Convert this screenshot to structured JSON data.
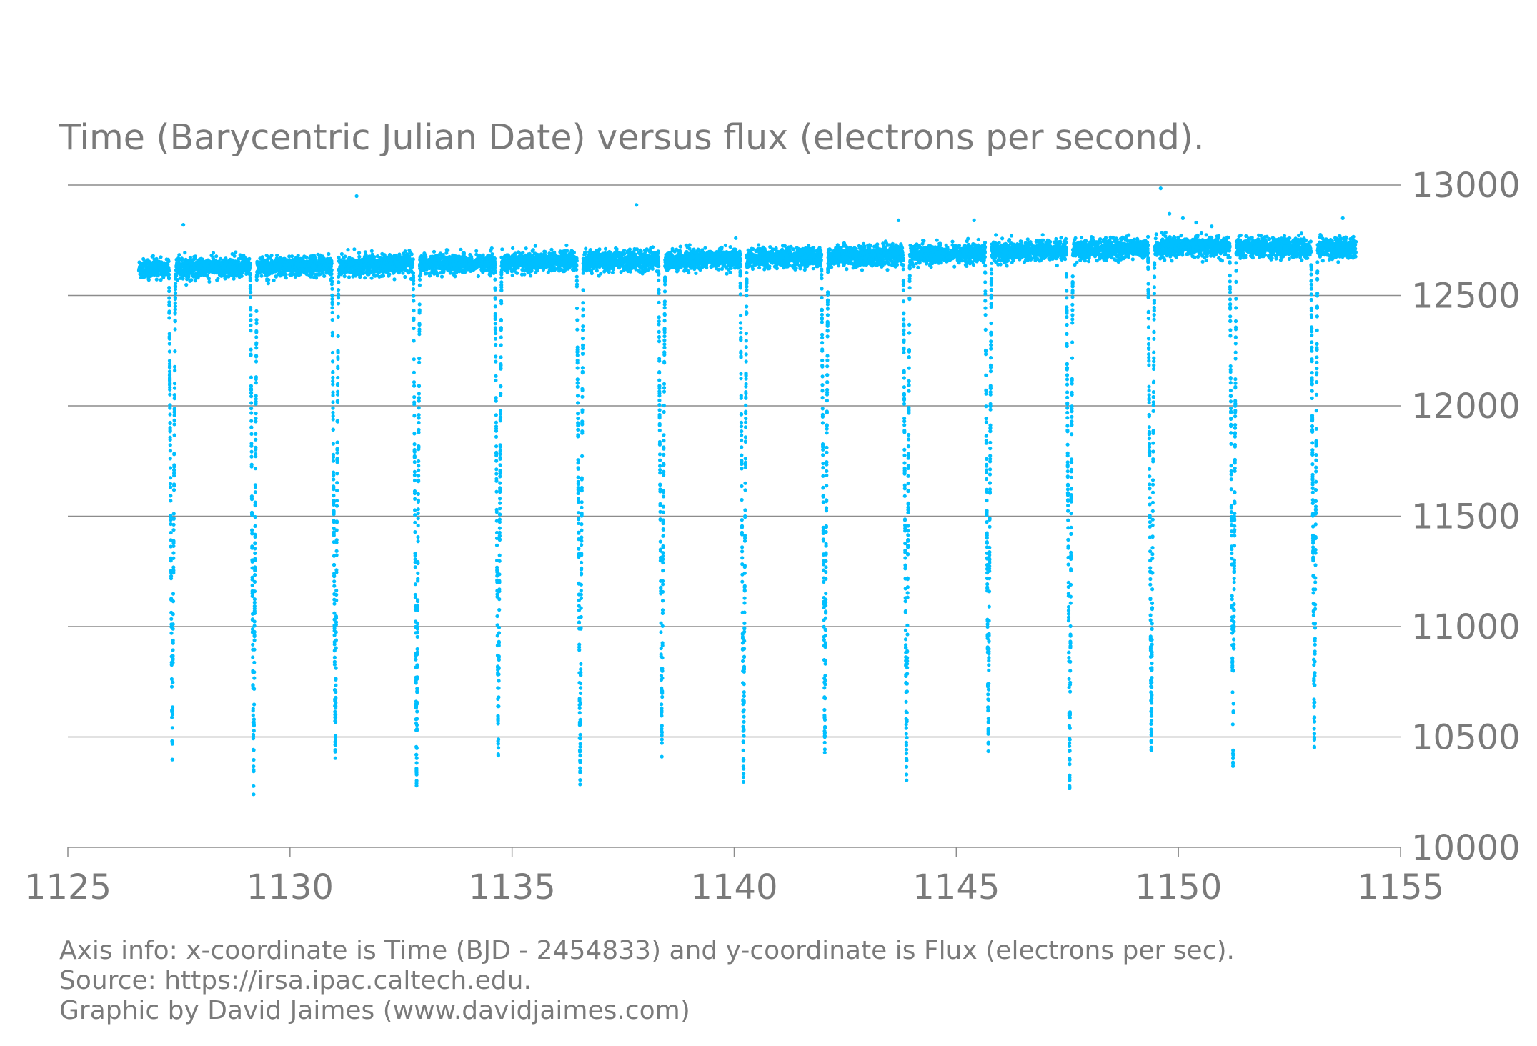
{
  "chart_data": {
    "type": "scatter",
    "title": "Time (Barycentric Julian Date) versus flux (electrons per second).",
    "xlabel": "",
    "ylabel": "",
    "xlim": [
      1125,
      1155
    ],
    "ylim": [
      10000,
      13000
    ],
    "x_ticks": [
      "1125",
      "1130",
      "1135",
      "1140",
      "1145",
      "1150",
      "1155"
    ],
    "y_ticks": [
      "10000",
      "10500",
      "11000",
      "11500",
      "12000",
      "12500",
      "13000"
    ],
    "y_axis_position": "right",
    "grid": "horizontal",
    "marker_color": "#00bfff",
    "gridline_color": "#8c8c8c",
    "time_range": [
      1126.6,
      1154.0
    ],
    "period_days": 1.8378,
    "baseline": [
      {
        "x": 1126.6,
        "y": 12620
      },
      {
        "x": 1130.0,
        "y": 12630
      },
      {
        "x": 1135.0,
        "y": 12650
      },
      {
        "x": 1140.0,
        "y": 12665
      },
      {
        "x": 1145.0,
        "y": 12690
      },
      {
        "x": 1150.0,
        "y": 12720
      },
      {
        "x": 1154.0,
        "y": 12715
      }
    ],
    "transits": [
      {
        "x": 1127.35,
        "min_flux": 10390
      },
      {
        "x": 1129.18,
        "min_flux": 10290
      },
      {
        "x": 1131.02,
        "min_flux": 10390
      },
      {
        "x": 1132.85,
        "min_flux": 10280
      },
      {
        "x": 1134.69,
        "min_flux": 10400
      },
      {
        "x": 1136.53,
        "min_flux": 10310
      },
      {
        "x": 1138.37,
        "min_flux": 10430
      },
      {
        "x": 1140.21,
        "min_flux": 10300
      },
      {
        "x": 1142.04,
        "min_flux": 10430
      },
      {
        "x": 1143.88,
        "min_flux": 10310
      },
      {
        "x": 1145.72,
        "min_flux": 10460
      },
      {
        "x": 1147.55,
        "min_flux": 10300
      },
      {
        "x": 1149.39,
        "min_flux": 10450
      },
      {
        "x": 1151.23,
        "min_flux": 10360
      },
      {
        "x": 1153.06,
        "min_flux": 10470
      }
    ],
    "outliers": [
      {
        "x": 1127.6,
        "y": 12820
      },
      {
        "x": 1131.5,
        "y": 12950
      },
      {
        "x": 1137.8,
        "y": 12910
      },
      {
        "x": 1143.7,
        "y": 12840
      },
      {
        "x": 1149.6,
        "y": 12985
      },
      {
        "x": 1149.8,
        "y": 12870
      },
      {
        "x": 1150.1,
        "y": 12850
      },
      {
        "x": 1150.4,
        "y": 12830
      },
      {
        "x": 1145.4,
        "y": 12840
      },
      {
        "x": 1153.7,
        "y": 12850
      }
    ]
  },
  "footer": {
    "line1": "Axis info: x-coordinate is Time (BJD - 2454833) and y-coordinate is Flux (electrons per sec).",
    "line2": "Source: https://irsa.ipac.caltech.edu.",
    "line3": "Graphic by David Jaimes (www.davidjaimes.com)"
  }
}
